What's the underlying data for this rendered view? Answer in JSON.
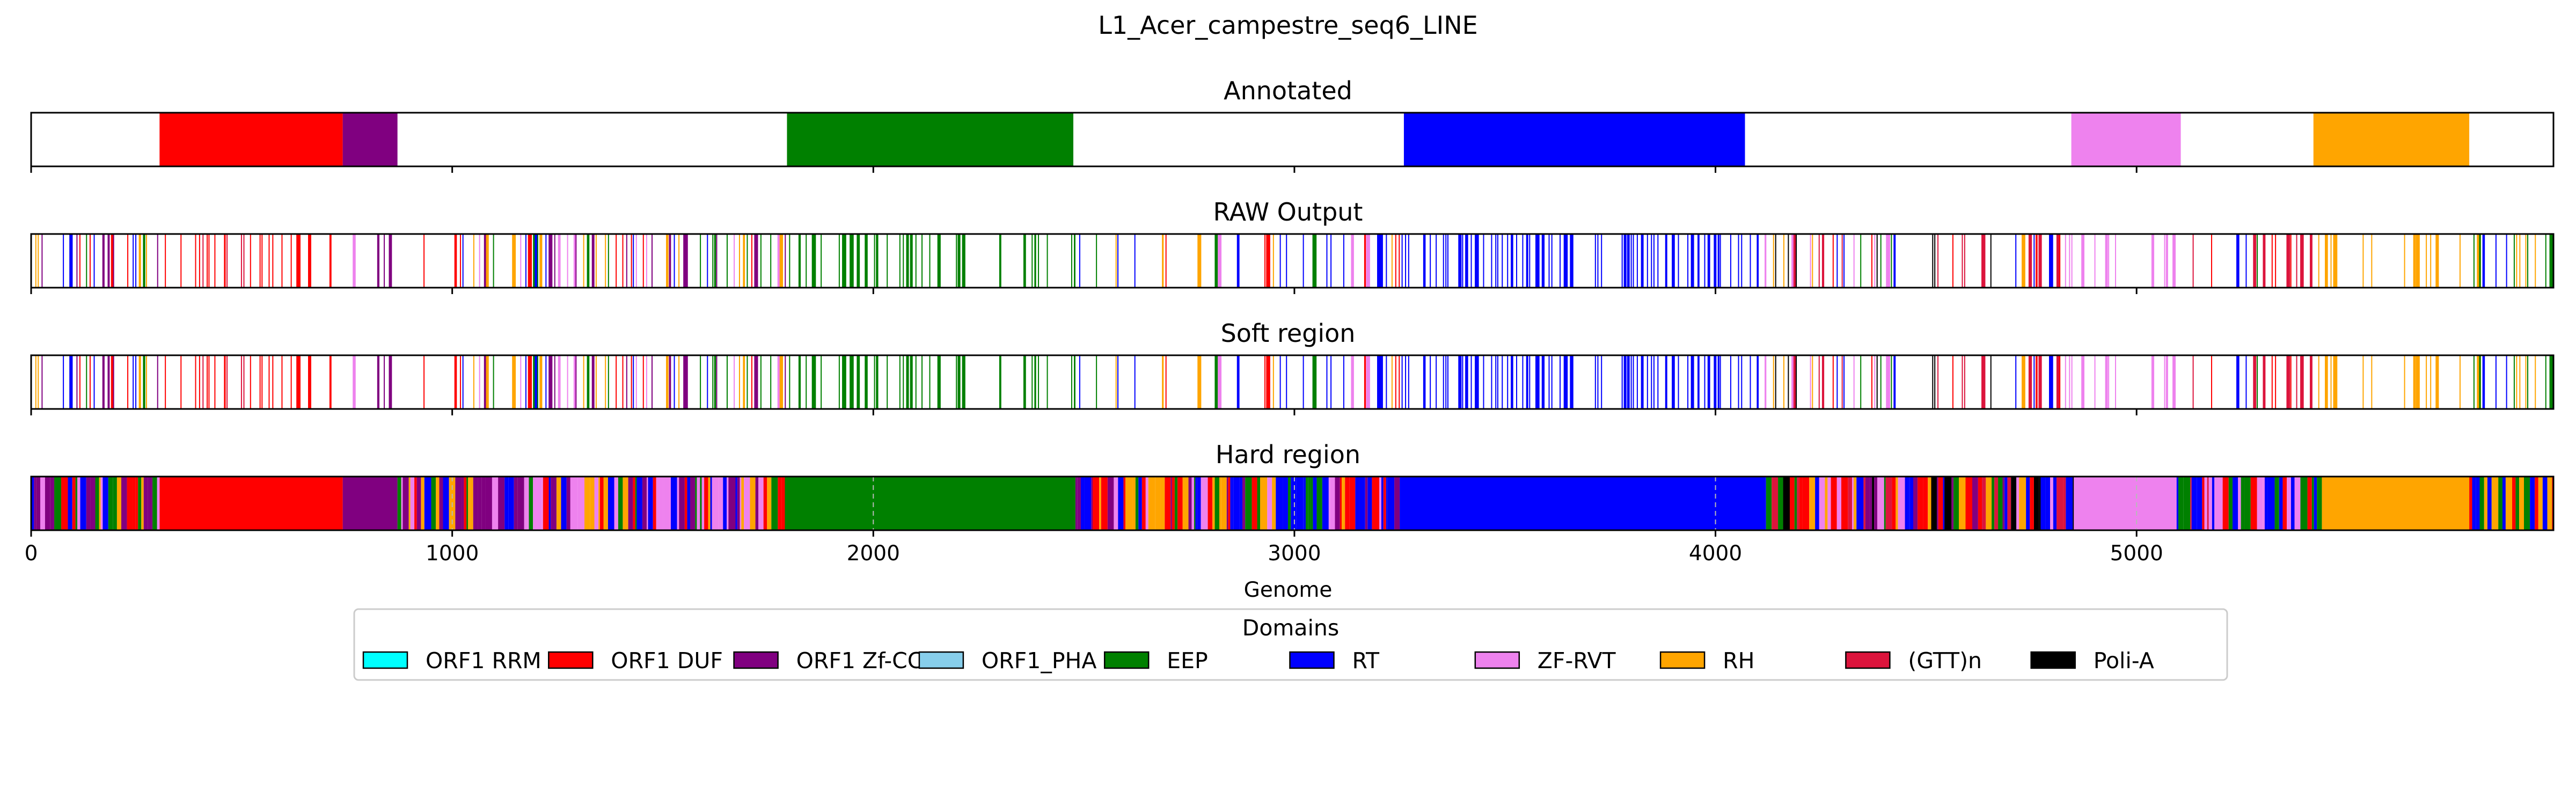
{
  "chart_data": {
    "type": "bar",
    "title": "L1_Acer_campestre_seq6_LINE",
    "xlabel": "Genome",
    "xlim": [
      0,
      5990
    ],
    "xticks": [
      0,
      1000,
      2000,
      3000,
      4000,
      5000
    ],
    "tick_labels": [
      "0",
      "1000",
      "2000",
      "3000",
      "4000",
      "5000"
    ],
    "legend": {
      "title": "Domains",
      "placement": "bottom-center",
      "entries": [
        {
          "name": "ORF1 RRM",
          "color": "#00ffff"
        },
        {
          "name": "ORF1 DUF",
          "color": "#ff0000"
        },
        {
          "name": "ORF1 Zf-CCHC",
          "color": "#800080"
        },
        {
          "name": "ORF1_PHA",
          "color": "#87ceeb"
        },
        {
          "name": "EEP",
          "color": "#008000"
        },
        {
          "name": "RT",
          "color": "#0000ff"
        },
        {
          "name": "ZF-RVT",
          "color": "#ee82ee"
        },
        {
          "name": "RH",
          "color": "#ffa500"
        },
        {
          "name": "(GTT)n",
          "color": "#dc143c"
        },
        {
          "name": "Poli-A",
          "color": "#000000"
        }
      ]
    },
    "panels": [
      {
        "title": "Annotated",
        "show_ticks": false,
        "segments": [
          {
            "domain": "ORF1 DUF",
            "start": 305,
            "end": 740
          },
          {
            "domain": "ORF1 Zf-CCHC",
            "start": 740,
            "end": 870
          },
          {
            "domain": "EEP",
            "start": 1795,
            "end": 2475
          },
          {
            "domain": "RT",
            "start": 3260,
            "end": 4070
          },
          {
            "domain": "ZF-RVT",
            "start": 4845,
            "end": 5105
          },
          {
            "domain": "RH",
            "start": 5420,
            "end": 5790
          }
        ]
      },
      {
        "title": "RAW Output",
        "show_ticks": false,
        "sparse": true,
        "regions": [
          {
            "start": 0,
            "end": 300,
            "domains": [
              "RT",
              "EEP",
              "ORF1 DUF",
              "RH",
              "ORF1 Zf-CCHC"
            ],
            "density": 0.45
          },
          {
            "start": 300,
            "end": 750,
            "domains": [
              "ORF1 DUF",
              "ORF1 DUF",
              "(GTT)n"
            ],
            "density": 0.3
          },
          {
            "start": 750,
            "end": 1050,
            "domains": [
              "ORF1 Zf-CCHC",
              "ORF1 DUF",
              "RT",
              "ZF-RVT"
            ],
            "density": 0.2
          },
          {
            "start": 1050,
            "end": 1800,
            "domains": [
              "RT",
              "ORF1 DUF",
              "ORF1 Zf-CCHC",
              "EEP",
              "RH",
              "ZF-RVT"
            ],
            "density": 0.45
          },
          {
            "start": 1800,
            "end": 2480,
            "domains": [
              "EEP"
            ],
            "density": 0.35
          },
          {
            "start": 2480,
            "end": 3250,
            "domains": [
              "EEP",
              "RT",
              "ORF1 DUF",
              "ZF-RVT",
              "RH"
            ],
            "density": 0.3
          },
          {
            "start": 3250,
            "end": 4100,
            "domains": [
              "RT"
            ],
            "density": 0.45
          },
          {
            "start": 4100,
            "end": 4830,
            "domains": [
              "RT",
              "ORF1 DUF",
              "EEP",
              "RH",
              "ZF-RVT",
              "(GTT)n",
              "Poli-A"
            ],
            "density": 0.45
          },
          {
            "start": 4830,
            "end": 5110,
            "domains": [
              "ZF-RVT"
            ],
            "density": 0.25
          },
          {
            "start": 5110,
            "end": 5420,
            "domains": [
              "EEP",
              "ORF1 DUF",
              "RT",
              "(GTT)n"
            ],
            "density": 0.4
          },
          {
            "start": 5420,
            "end": 5800,
            "domains": [
              "RH"
            ],
            "density": 0.25
          },
          {
            "start": 5800,
            "end": 5990,
            "domains": [
              "RT",
              "EEP",
              "RH"
            ],
            "density": 0.5
          }
        ]
      },
      {
        "title": "Soft region",
        "show_ticks": false,
        "sparse": true,
        "regions": [
          {
            "start": 0,
            "end": 300,
            "domains": [
              "RT",
              "EEP",
              "ORF1 DUF",
              "RH",
              "ORF1 Zf-CCHC"
            ],
            "density": 0.45
          },
          {
            "start": 300,
            "end": 750,
            "domains": [
              "ORF1 DUF",
              "ORF1 DUF",
              "(GTT)n"
            ],
            "density": 0.3
          },
          {
            "start": 750,
            "end": 1050,
            "domains": [
              "ORF1 Zf-CCHC",
              "ORF1 DUF",
              "RT",
              "ZF-RVT"
            ],
            "density": 0.2
          },
          {
            "start": 1050,
            "end": 1800,
            "domains": [
              "RT",
              "ORF1 DUF",
              "ORF1 Zf-CCHC",
              "EEP",
              "RH",
              "ZF-RVT"
            ],
            "density": 0.45
          },
          {
            "start": 1800,
            "end": 2480,
            "domains": [
              "EEP"
            ],
            "density": 0.35
          },
          {
            "start": 2480,
            "end": 3250,
            "domains": [
              "EEP",
              "RT",
              "ORF1 DUF",
              "ZF-RVT",
              "RH"
            ],
            "density": 0.3
          },
          {
            "start": 3250,
            "end": 4100,
            "domains": [
              "RT"
            ],
            "density": 0.45
          },
          {
            "start": 4100,
            "end": 4830,
            "domains": [
              "RT",
              "ORF1 DUF",
              "EEP",
              "RH",
              "ZF-RVT",
              "(GTT)n",
              "Poli-A"
            ],
            "density": 0.45
          },
          {
            "start": 4830,
            "end": 5110,
            "domains": [
              "ZF-RVT"
            ],
            "density": 0.25
          },
          {
            "start": 5110,
            "end": 5420,
            "domains": [
              "EEP",
              "ORF1 DUF",
              "RT",
              "(GTT)n"
            ],
            "density": 0.4
          },
          {
            "start": 5420,
            "end": 5800,
            "domains": [
              "RH"
            ],
            "density": 0.25
          },
          {
            "start": 5800,
            "end": 5990,
            "domains": [
              "RT",
              "EEP",
              "RH"
            ],
            "density": 0.5
          }
        ]
      },
      {
        "title": "Hard region",
        "show_ticks": true,
        "grid": "dashed-vertical",
        "segments": [
          {
            "domain": "ORF1 DUF",
            "start": 305,
            "end": 740
          },
          {
            "domain": "ORF1 Zf-CCHC",
            "start": 740,
            "end": 870
          },
          {
            "domain": "EEP",
            "start": 1790,
            "end": 2480
          },
          {
            "domain": "RT",
            "start": 3250,
            "end": 4120
          },
          {
            "domain": "ZF-RVT",
            "start": 4850,
            "end": 5095
          },
          {
            "domain": "RH",
            "start": 5440,
            "end": 5790
          }
        ],
        "mixed": [
          {
            "start": 0,
            "end": 305,
            "domains": [
              "RT",
              "EEP",
              "ORF1 DUF",
              "RH",
              "ORF1 Zf-CCHC",
              "ZF-RVT"
            ]
          },
          {
            "start": 870,
            "end": 1790,
            "domains": [
              "RT",
              "ORF1 DUF",
              "ORF1 Zf-CCHC",
              "EEP",
              "RH",
              "ZF-RVT"
            ]
          },
          {
            "start": 2480,
            "end": 3250,
            "domains": [
              "EEP",
              "RT",
              "ORF1 DUF",
              "ZF-RVT",
              "RH",
              "ORF1 Zf-CCHC"
            ]
          },
          {
            "start": 4120,
            "end": 4850,
            "domains": [
              "RT",
              "ORF1 DUF",
              "EEP",
              "RH",
              "ZF-RVT",
              "(GTT)n",
              "Poli-A",
              "ORF1 Zf-CCHC"
            ]
          },
          {
            "start": 5095,
            "end": 5440,
            "domains": [
              "EEP",
              "ORF1 DUF",
              "RT",
              "(GTT)n",
              "ZF-RVT"
            ]
          },
          {
            "start": 5790,
            "end": 5990,
            "domains": [
              "RT",
              "EEP",
              "RH",
              "ORF1 DUF"
            ]
          }
        ]
      }
    ]
  }
}
